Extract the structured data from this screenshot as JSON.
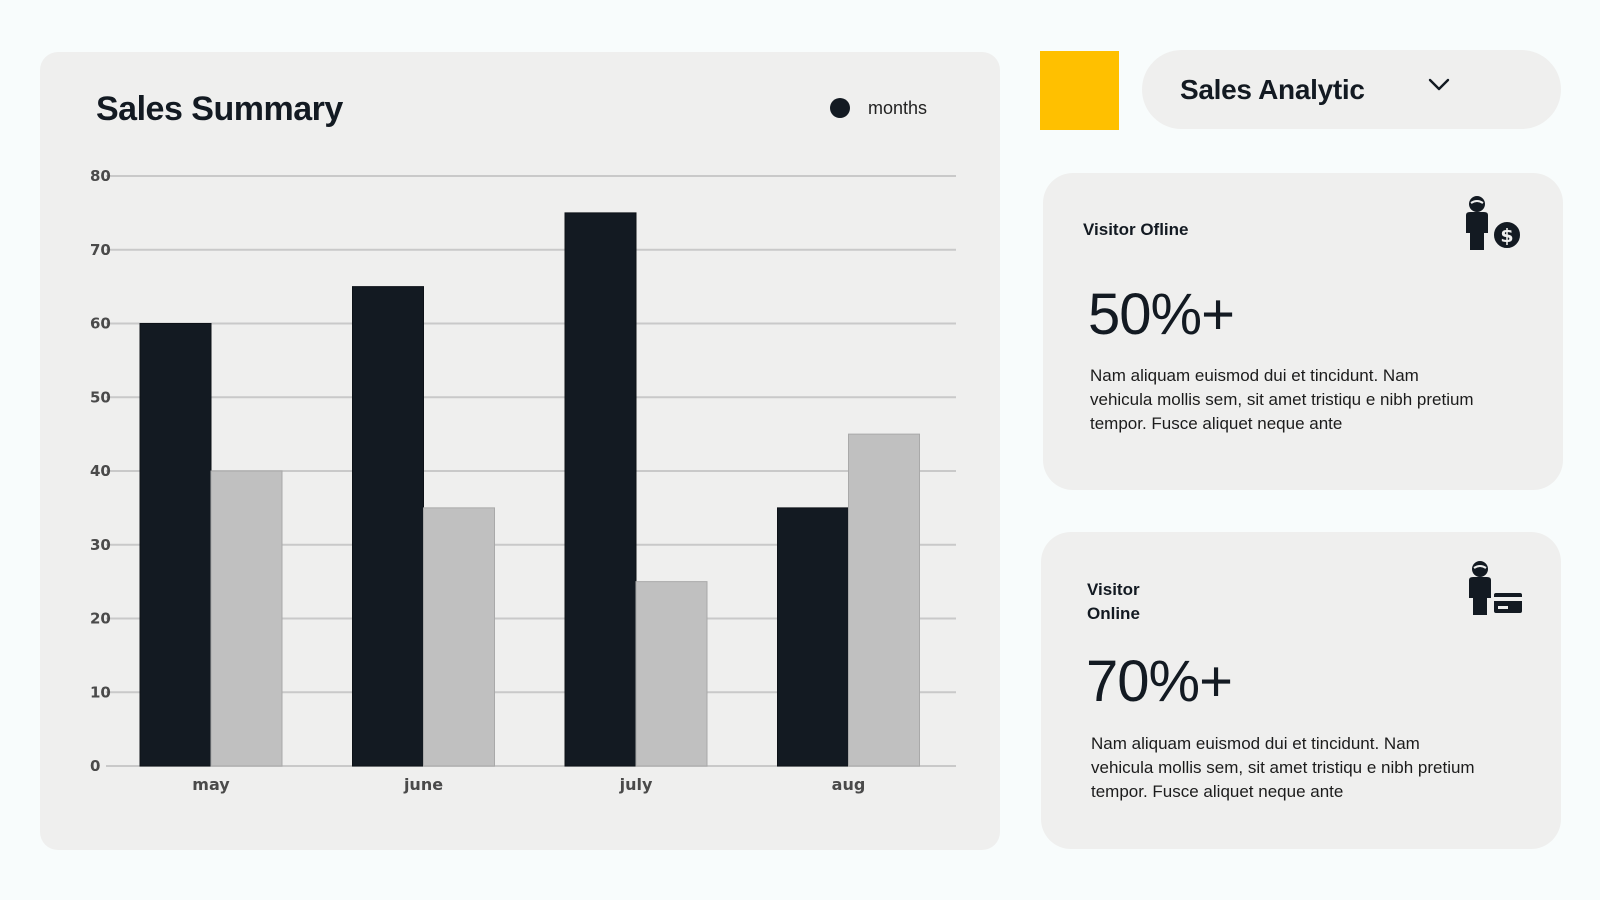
{
  "chart_card": {
    "title": "Sales Summary",
    "legend_label": "months"
  },
  "chart_data": {
    "type": "bar",
    "title": "Sales Summary",
    "xlabel": "",
    "ylabel": "",
    "categories": [
      "may",
      "june",
      "july",
      "aug"
    ],
    "series": [
      {
        "name": "months",
        "color": "#131a22",
        "values": [
          60,
          65,
          75,
          35
        ]
      },
      {
        "color": "#c0c0c0",
        "values": [
          40,
          35,
          25,
          45
        ]
      }
    ],
    "ylim": [
      0,
      80
    ],
    "yticks": [
      0,
      10,
      20,
      30,
      40,
      50,
      60,
      70,
      80
    ],
    "grid": true,
    "legend_position": "top-right"
  },
  "header": {
    "accent_color": "#ffc000",
    "dropdown_label": "Sales Analytic",
    "dropdown_icon": "chevron-down-icon"
  },
  "cards": {
    "offline": {
      "title": "Visitor Ofline",
      "value": "50%+",
      "body": "Nam aliquam euismod dui et tincidunt. Nam vehicula mollis sem, sit amet tristiqu    e nibh pretium tempor. Fusce aliquet neque ante",
      "icon": "person-dollar-icon"
    },
    "online": {
      "title": "Visitor Online",
      "value": "70%+",
      "body": "Nam aliquam euismod dui et tincidunt. Nam vehicula mollis sem, sit amet tristiqu    e nibh pretium tempor. Fusce aliquet neque ante",
      "icon": "person-card-icon"
    }
  }
}
